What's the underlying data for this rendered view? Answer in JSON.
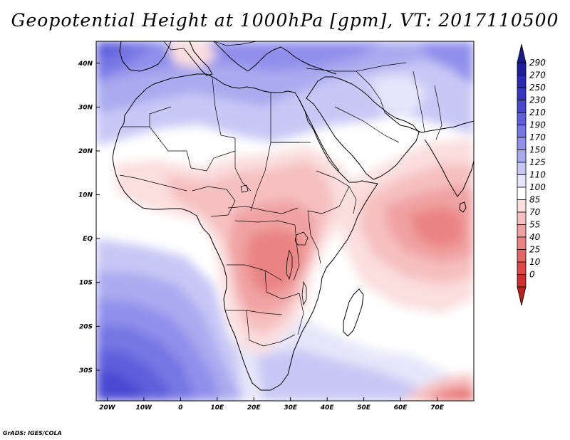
{
  "title": "Geopotential Height at 1000hPa [gpm], VT: 2017110500",
  "credit": "GrADS: IGES/COLA",
  "map": {
    "lon_range": [
      -23,
      80
    ],
    "lat_range": [
      -37,
      45
    ],
    "lon_ticks": [
      {
        "value": -20,
        "label": "20W"
      },
      {
        "value": -10,
        "label": "10W"
      },
      {
        "value": 0,
        "label": "0"
      },
      {
        "value": 10,
        "label": "10E"
      },
      {
        "value": 20,
        "label": "20E"
      },
      {
        "value": 30,
        "label": "30E"
      },
      {
        "value": 40,
        "label": "40E"
      },
      {
        "value": 50,
        "label": "50E"
      },
      {
        "value": 60,
        "label": "60E"
      },
      {
        "value": 70,
        "label": "70E"
      }
    ],
    "lat_ticks": [
      {
        "value": 40,
        "label": "40N"
      },
      {
        "value": 30,
        "label": "30N"
      },
      {
        "value": 20,
        "label": "20N"
      },
      {
        "value": 10,
        "label": "10N"
      },
      {
        "value": 0,
        "label": "EQ"
      },
      {
        "value": -10,
        "label": "10S"
      },
      {
        "value": -20,
        "label": "20S"
      },
      {
        "value": -30,
        "label": "30S"
      }
    ]
  },
  "colorbar": {
    "levels": [
      {
        "label": "290",
        "color": "#1e1e9e"
      },
      {
        "label": "270",
        "color": "#2a2ab2"
      },
      {
        "label": "250",
        "color": "#3535c4"
      },
      {
        "label": "230",
        "color": "#4848d2"
      },
      {
        "label": "210",
        "color": "#5e5edc"
      },
      {
        "label": "190",
        "color": "#7676e4"
      },
      {
        "label": "170",
        "color": "#9090ec"
      },
      {
        "label": "150",
        "color": "#aaaaf0"
      },
      {
        "label": "125",
        "color": "#c8c8f6"
      },
      {
        "label": "110",
        "color": "#e6e6fa"
      },
      {
        "label": "100",
        "color": "#ffffff"
      },
      {
        "label": "85",
        "color": "#fbdede"
      },
      {
        "label": "70",
        "color": "#f6c0c0"
      },
      {
        "label": "55",
        "color": "#f0a2a2"
      },
      {
        "label": "40",
        "color": "#ea8484"
      },
      {
        "label": "25",
        "color": "#e46666"
      },
      {
        "label": "10",
        "color": "#de4848"
      },
      {
        "label": "0",
        "color": "#cf2e2e"
      }
    ],
    "top_color": "#1a1a8a",
    "bottom_color": "#b82020"
  },
  "field_colors": {
    "white": "#ffffff",
    "pale_blue": "#e6e6fa",
    "light_blue": "#c8c8f6",
    "mid_blue": "#aaaaf0",
    "blue": "#9090ec",
    "deep_blue": "#7676e4",
    "dark_blue": "#5e5edc",
    "navy": "#4848d2",
    "pale_red": "#fbdede",
    "light_red": "#f6c0c0",
    "mid_red": "#f0a2a2",
    "red": "#ea8484",
    "deep_red": "#e46666"
  }
}
